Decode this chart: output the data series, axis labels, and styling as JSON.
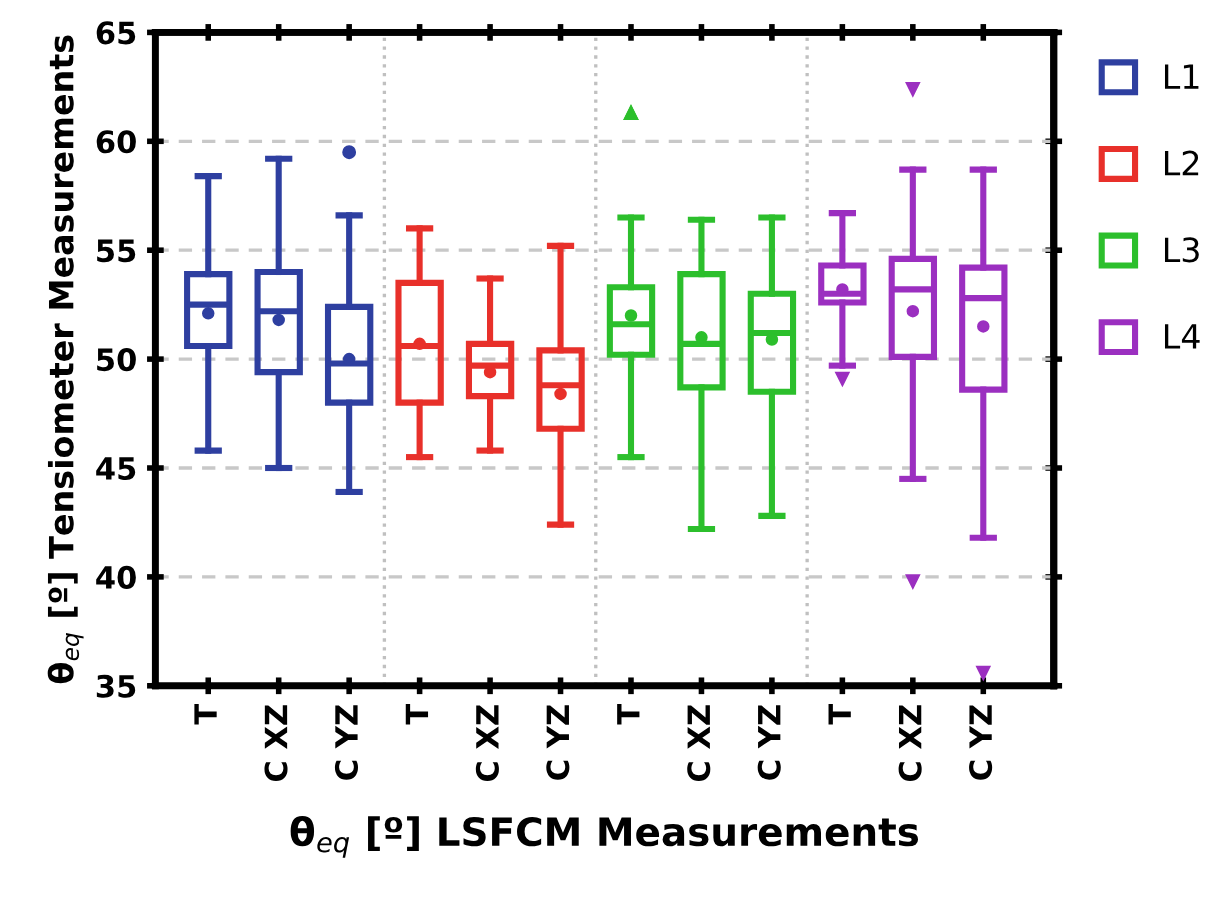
{
  "chart_data": {
    "type": "box",
    "xlabel": "θ$_{eq}$ [º] LSFCM Measurements",
    "ylabel": "θ$_{eq}$ [º] Tensiometer Measurements",
    "categories": [
      "T",
      "C XZ",
      "C YZ",
      "T",
      "C XZ",
      "C YZ",
      "T",
      "C XZ",
      "C YZ",
      "T",
      "C XZ",
      "C YZ"
    ],
    "ylim": [
      35,
      65
    ],
    "yticks": [
      35,
      40,
      45,
      50,
      55,
      60,
      65
    ],
    "grid": true,
    "legend": "top right",
    "series": [
      {
        "name": "L1",
        "color": "#2e3fa0",
        "marker": "circle",
        "boxes": [
          {
            "low": 45.8,
            "q1": 50.6,
            "median": 52.5,
            "q3": 53.9,
            "high": 58.4,
            "mean": 52.1
          },
          {
            "low": 45.0,
            "q1": 49.4,
            "median": 52.2,
            "q3": 54.0,
            "high": 59.2,
            "mean": 51.8
          },
          {
            "low": 43.9,
            "q1": 48.0,
            "median": 49.8,
            "q3": 52.4,
            "high": 56.6,
            "mean": 50.0,
            "outliers": [
              59.5
            ]
          },
          null,
          null,
          null,
          null,
          null,
          null,
          null,
          null,
          null
        ]
      },
      {
        "name": "L2",
        "color": "#e8302a",
        "marker": "square",
        "boxes": [
          null,
          null,
          null,
          {
            "low": 45.5,
            "q1": 48.0,
            "median": 50.6,
            "q3": 53.5,
            "high": 56.0,
            "mean": 50.7
          },
          {
            "low": 45.8,
            "q1": 48.3,
            "median": 49.7,
            "q3": 50.7,
            "high": 53.7,
            "mean": 49.4
          },
          {
            "low": 42.4,
            "q1": 46.8,
            "median": 48.8,
            "q3": 50.4,
            "high": 55.2,
            "mean": 48.4
          },
          null,
          null,
          null,
          null,
          null,
          null
        ]
      },
      {
        "name": "L3",
        "color": "#2cbf2c",
        "marker": "triangle",
        "boxes": [
          null,
          null,
          null,
          null,
          null,
          null,
          {
            "low": 45.5,
            "q1": 50.2,
            "median": 51.6,
            "q3": 53.3,
            "high": 56.5,
            "mean": 52.0,
            "outliers": [
              61.3,
              61.3
            ]
          },
          {
            "low": 42.2,
            "q1": 48.7,
            "median": 50.7,
            "q3": 53.9,
            "high": 56.4,
            "mean": 51.0
          },
          {
            "low": 42.8,
            "q1": 48.5,
            "median": 51.2,
            "q3": 53.0,
            "high": 56.5,
            "mean": 50.9
          },
          null,
          null,
          null
        ]
      },
      {
        "name": "L4",
        "color": "#9b2fc0",
        "marker": "triangle_down",
        "boxes": [
          null,
          null,
          null,
          null,
          null,
          null,
          null,
          null,
          null,
          {
            "low": 49.7,
            "q1": 52.6,
            "median": 53.0,
            "q3": 54.3,
            "high": 56.7,
            "mean": 53.2,
            "outliers": [
              49.1
            ]
          },
          {
            "low": 44.5,
            "q1": 50.1,
            "median": 53.2,
            "q3": 54.6,
            "high": 58.7,
            "mean": 52.2,
            "outliers": [
              62.4,
              39.8
            ]
          },
          {
            "low": 41.8,
            "q1": 48.6,
            "median": 52.8,
            "q3": 54.2,
            "high": 58.7,
            "mean": 51.5,
            "outliers": [
              35.6
            ]
          }
        ]
      }
    ]
  }
}
